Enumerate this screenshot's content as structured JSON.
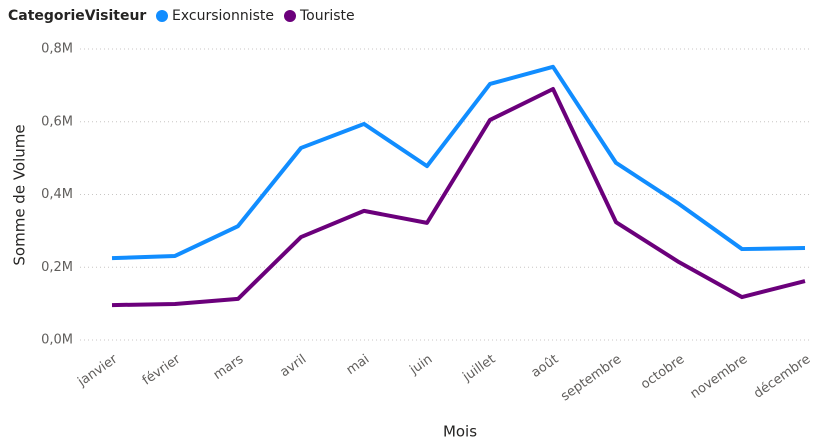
{
  "chart_data": {
    "type": "line",
    "legend_title": "CategorieVisiteur",
    "x_label": "Mois",
    "y_label": "Somme de Volume",
    "categories": [
      "janvier",
      "février",
      "mars",
      "avril",
      "mai",
      "juin",
      "juillet",
      "août",
      "septembre",
      "octobre",
      "novembre",
      "décembre"
    ],
    "series": [
      {
        "name": "Excursionniste",
        "color": "#118dff",
        "values": [
          225000,
          231000,
          313000,
          528000,
          594000,
          478000,
          704000,
          751000,
          487000,
          374000,
          250000,
          253000
        ]
      },
      {
        "name": "Touriste",
        "color": "#6b007b",
        "values": [
          96000,
          99000,
          113000,
          283000,
          355000,
          322000,
          605000,
          690000,
          324000,
          214000,
          118000,
          162000
        ]
      }
    ],
    "ylim": [
      0,
      800000
    ],
    "yticks": [
      {
        "value": 0,
        "label": "0,0M"
      },
      {
        "value": 200000,
        "label": "0,2M"
      },
      {
        "value": 400000,
        "label": "0,4M"
      },
      {
        "value": 600000,
        "label": "0,6M"
      },
      {
        "value": 800000,
        "label": "0,8M"
      }
    ],
    "grid": true,
    "legend": "top-left"
  }
}
